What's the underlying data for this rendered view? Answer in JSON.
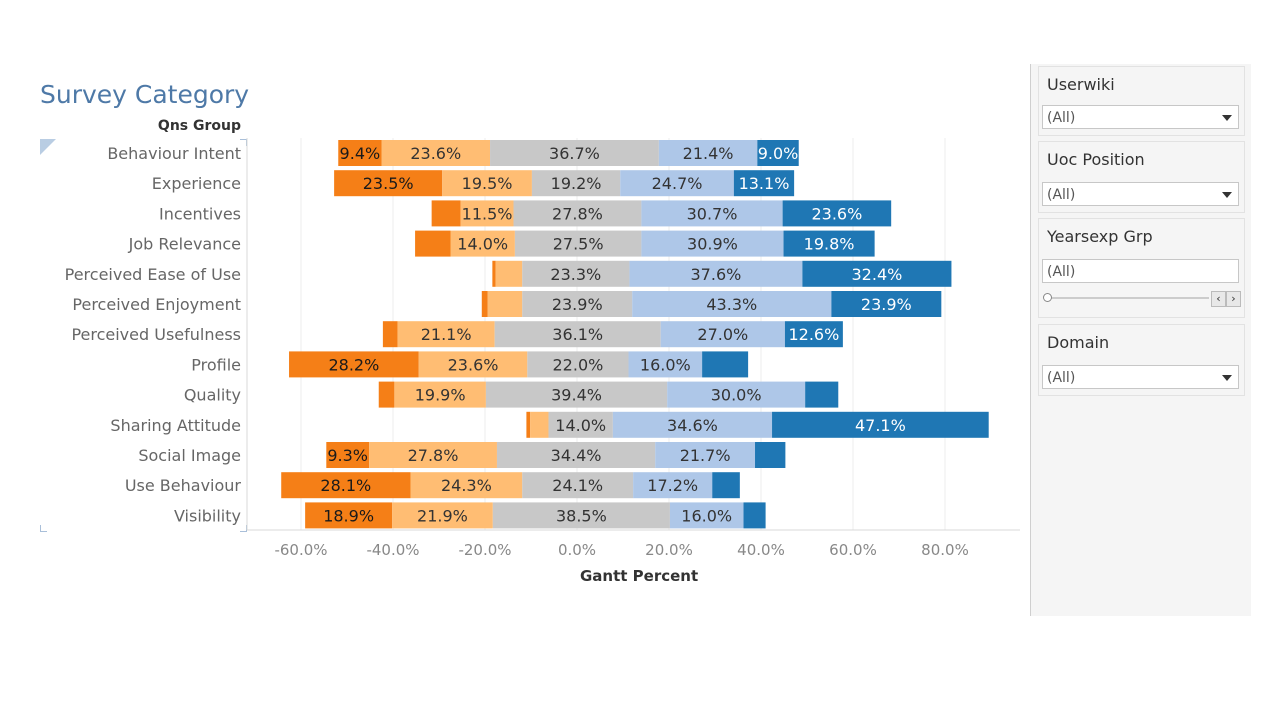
{
  "title": "Survey Category",
  "group_header": "Qns Group",
  "axis_title": "Gantt Percent",
  "colors": {
    "strongly_disagree": "#f57f17",
    "disagree": "#ffbd73",
    "neutral": "#c8c8c8",
    "agree": "#aec7e8",
    "strongly_agree": "#1f77b4",
    "title": "#4e79a7"
  },
  "chart_data": {
    "type": "bar",
    "orientation": "horizontal",
    "stacked": "diverging",
    "xlabel": "Gantt Percent",
    "xlim": [
      -70,
      96
    ],
    "xticks": [
      "-60.0%",
      "-40.0%",
      "-20.0%",
      "0.0%",
      "20.0%",
      "40.0%",
      "60.0%",
      "80.0%"
    ],
    "xtick_values": [
      -60,
      -40,
      -20,
      0,
      20,
      40,
      60,
      80
    ],
    "grid": true,
    "categories": [
      "Behaviour Intent",
      "Experience",
      "Incentives",
      "Job Relevance",
      "Perceived Ease of Use",
      "Perceived Enjoyment",
      "Perceived Usefulness",
      "Profile",
      "Quality",
      "Sharing Attitude",
      "Social Image",
      "Use Behaviour",
      "Visibility"
    ],
    "starts": [
      -51.9,
      -52.8,
      -31.6,
      -35.2,
      -18.4,
      -20.7,
      -42.2,
      -62.6,
      -43.1,
      -11.0,
      -54.5,
      -64.3,
      -59.1
    ],
    "series": [
      {
        "values": [
          9.4,
          23.5,
          6.3,
          7.7,
          0.7,
          1.3,
          3.2,
          28.2,
          3.4,
          0.8,
          9.3,
          28.1,
          18.9
        ],
        "labels": [
          "9.4%",
          "23.5%",
          "",
          "",
          "",
          "",
          "",
          "28.2%",
          "",
          "",
          "9.3%",
          "28.1%",
          "18.9%"
        ]
      },
      {
        "values": [
          23.6,
          19.5,
          11.5,
          14.0,
          5.8,
          7.5,
          21.1,
          23.6,
          19.9,
          4.0,
          27.8,
          24.3,
          21.9
        ],
        "labels": [
          "23.6%",
          "19.5%",
          "11.5%",
          "14.0%",
          "",
          "",
          "21.1%",
          "23.6%",
          "19.9%",
          "",
          "27.8%",
          "24.3%",
          "21.9%"
        ]
      },
      {
        "values": [
          36.7,
          19.2,
          27.8,
          27.5,
          23.3,
          23.9,
          36.1,
          22.0,
          39.4,
          14.0,
          34.4,
          24.1,
          38.5
        ],
        "labels": [
          "36.7%",
          "19.2%",
          "27.8%",
          "27.5%",
          "23.3%",
          "23.9%",
          "36.1%",
          "22.0%",
          "39.4%",
          "14.0%",
          "34.4%",
          "24.1%",
          "38.5%"
        ]
      },
      {
        "values": [
          21.4,
          24.7,
          30.7,
          30.9,
          37.6,
          43.3,
          27.0,
          16.0,
          30.0,
          34.6,
          21.7,
          17.2,
          16.0
        ],
        "labels": [
          "21.4%",
          "24.7%",
          "30.7%",
          "30.9%",
          "37.6%",
          "43.3%",
          "27.0%",
          "16.0%",
          "30.0%",
          "34.6%",
          "21.7%",
          "17.2%",
          "16.0%"
        ]
      },
      {
        "values": [
          9.0,
          13.1,
          23.6,
          19.8,
          32.4,
          23.9,
          12.6,
          10.0,
          7.2,
          47.1,
          6.6,
          6.0,
          4.8
        ],
        "labels": [
          "9.0%",
          "13.1%",
          "23.6%",
          "19.8%",
          "32.4%",
          "23.9%",
          "12.6%",
          "",
          "",
          "47.1%",
          "",
          "",
          ""
        ]
      }
    ]
  },
  "filters": [
    {
      "label": "Userwiki",
      "value": "(All)",
      "kind": "dropdown"
    },
    {
      "label": "Uoc Position",
      "value": "(All)",
      "kind": "dropdown"
    },
    {
      "label": "Yearsexp Grp",
      "value": "(All)",
      "kind": "slider"
    },
    {
      "label": "Domain",
      "value": "(All)",
      "kind": "dropdown"
    }
  ]
}
